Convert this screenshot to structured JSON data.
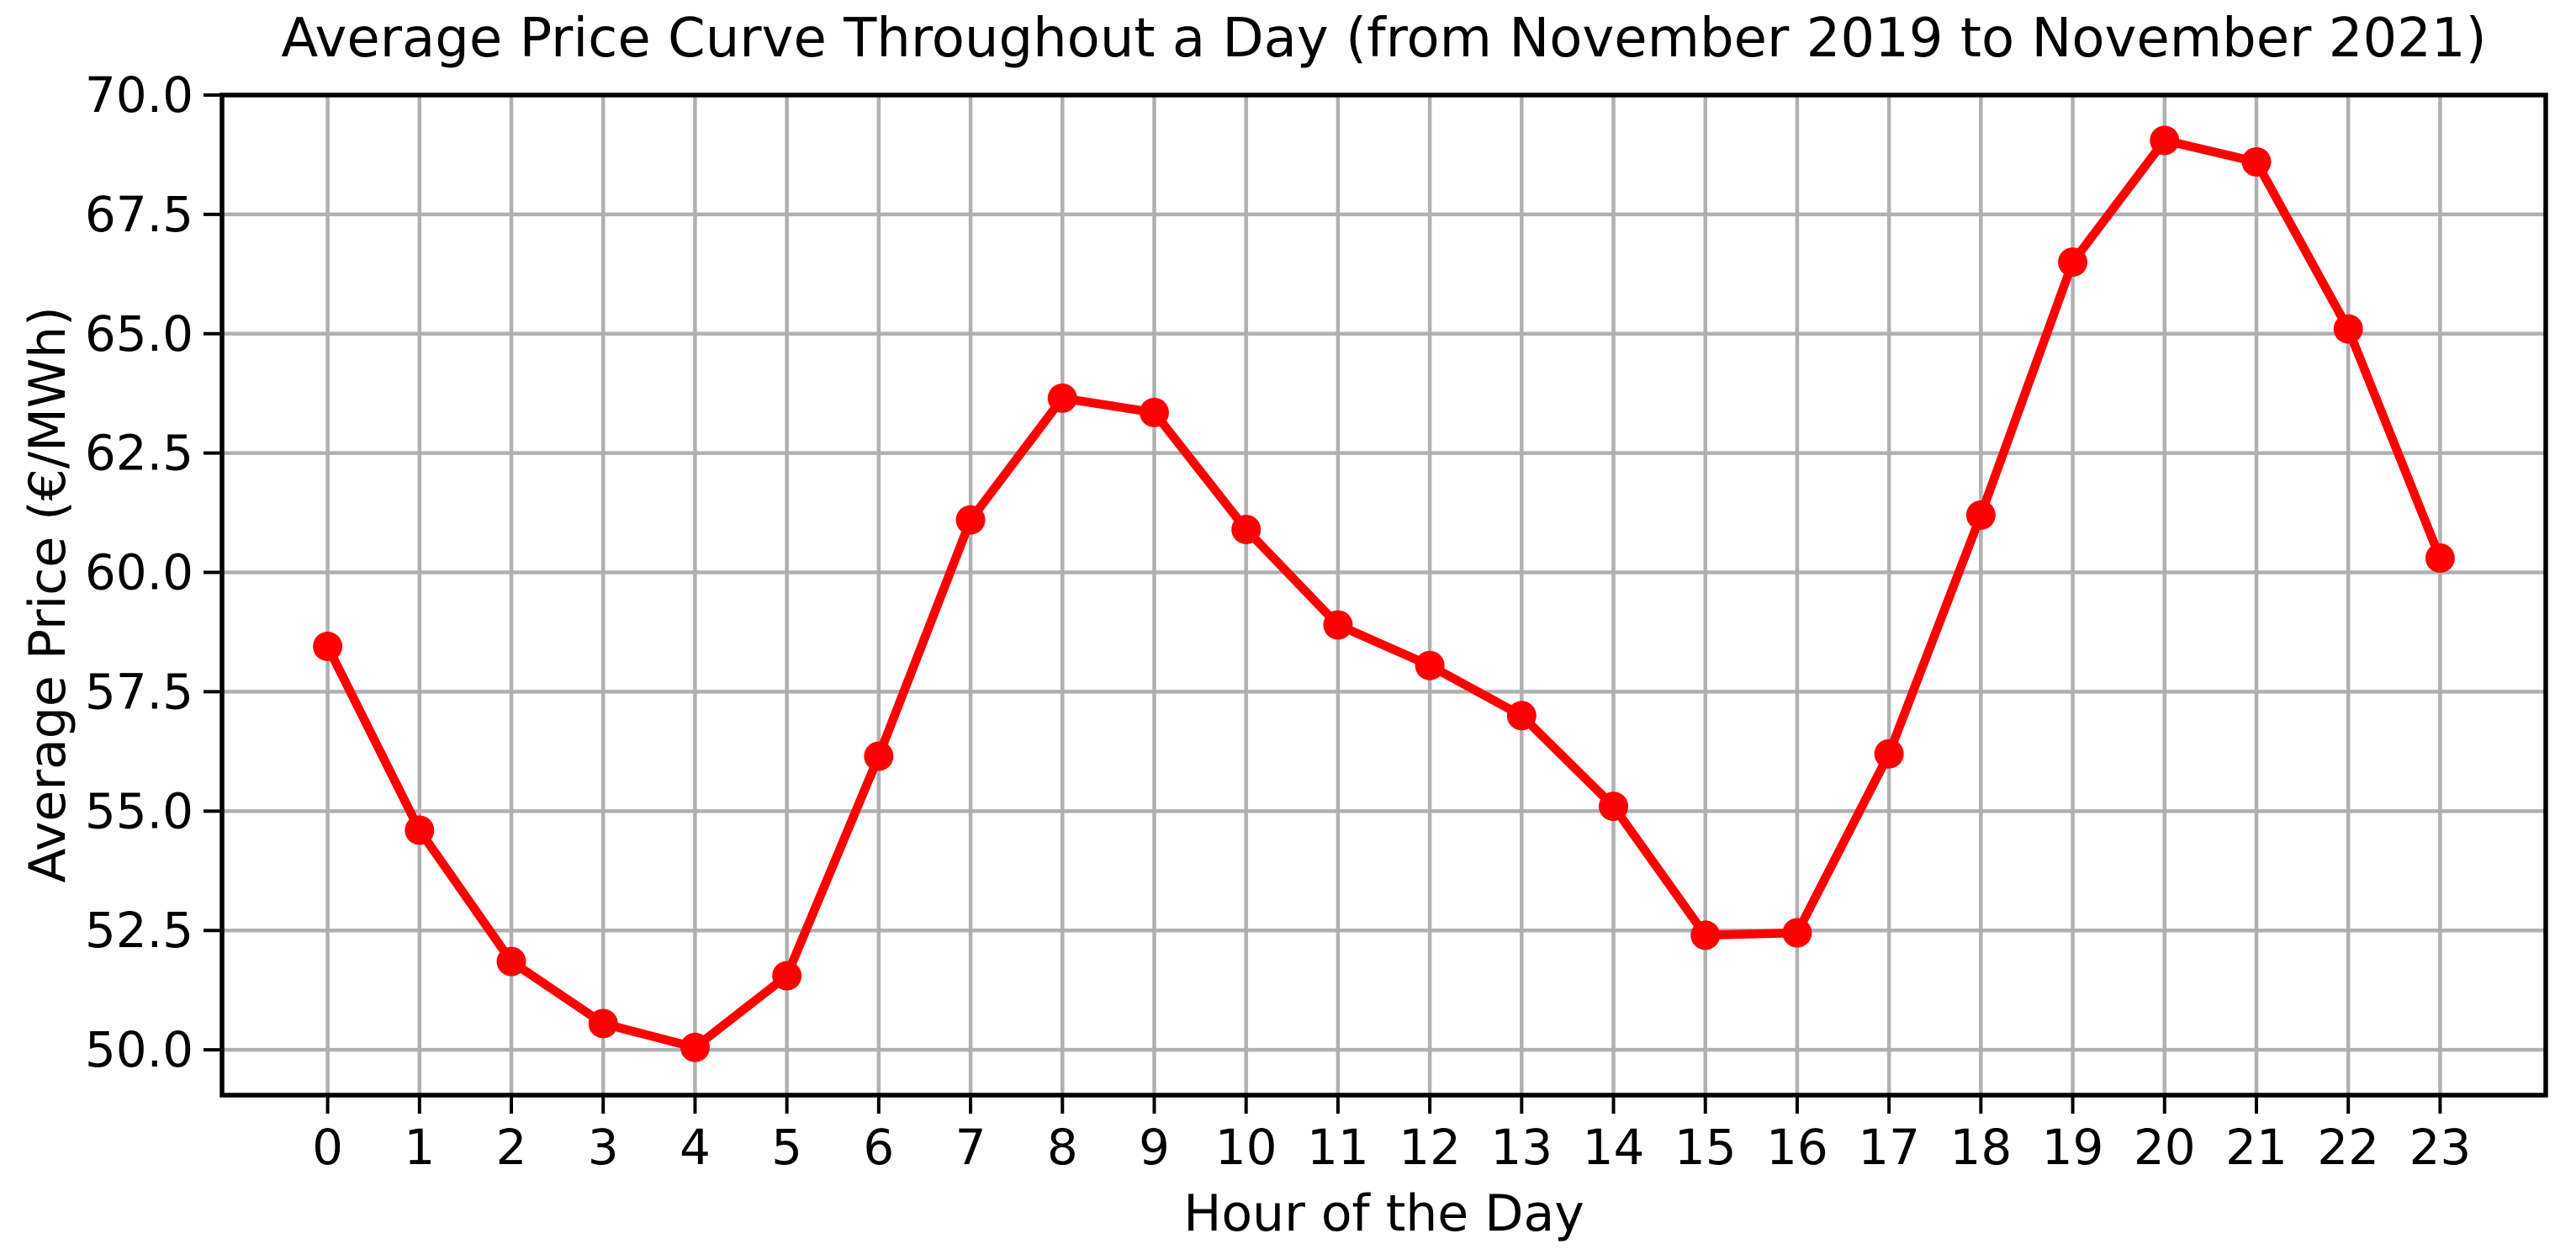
{
  "title": "Average Price Curve Throughout a Day (from November 2019 to November 2021)",
  "colors": {
    "line": "#ff0000",
    "marker": "#ff0000",
    "grid": "#b0b0b0",
    "spine": "#000000",
    "tick": "#000000",
    "text": "#000000",
    "background": "#ffffff"
  },
  "chart_data": {
    "type": "line",
    "title": "Average Price Curve Throughout a Day (from November 2019 to November 2021)",
    "xlabel": "Hour of the Day",
    "ylabel": "Average Price (€/MWh)",
    "x": [
      0,
      1,
      2,
      3,
      4,
      5,
      6,
      7,
      8,
      9,
      10,
      11,
      12,
      13,
      14,
      15,
      16,
      17,
      18,
      19,
      20,
      21,
      22,
      23
    ],
    "values": [
      58.45,
      54.6,
      51.85,
      50.55,
      50.05,
      51.55,
      56.15,
      61.1,
      63.65,
      63.35,
      60.9,
      58.9,
      58.05,
      57.0,
      55.1,
      52.4,
      52.45,
      56.2,
      61.2,
      66.5,
      69.05,
      68.6,
      65.1,
      60.3
    ],
    "xticks": [
      0,
      1,
      2,
      3,
      4,
      5,
      6,
      7,
      8,
      9,
      10,
      11,
      12,
      13,
      14,
      15,
      16,
      17,
      18,
      19,
      20,
      21,
      22,
      23
    ],
    "xtick_labels": [
      "0",
      "1",
      "2",
      "3",
      "4",
      "5",
      "6",
      "7",
      "8",
      "9",
      "10",
      "11",
      "12",
      "13",
      "14",
      "15",
      "16",
      "17",
      "18",
      "19",
      "20",
      "21",
      "22",
      "23"
    ],
    "yticks": [
      50.0,
      52.5,
      55.0,
      57.5,
      60.0,
      62.5,
      65.0,
      67.5,
      70.0
    ],
    "ytick_labels": [
      "50.0",
      "52.5",
      "55.0",
      "57.5",
      "60.0",
      "62.5",
      "65.0",
      "67.5",
      "70.0"
    ],
    "xlim": [
      -1.15,
      24.15
    ],
    "ylim": [
      49.05,
      70.0
    ],
    "grid": true,
    "legend": "none",
    "marker": "circle"
  }
}
